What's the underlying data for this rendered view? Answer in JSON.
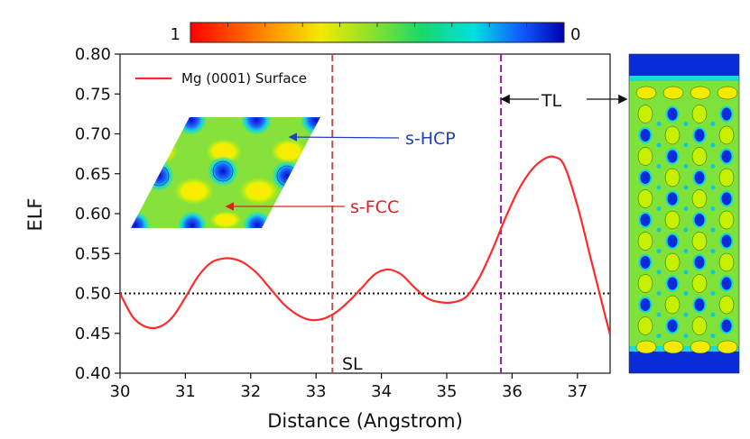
{
  "chart_data": {
    "type": "line",
    "xlabel": "Distance (Angstrom)",
    "ylabel": "ELF",
    "xlim": [
      30,
      37.5
    ],
    "ylim": [
      0.4,
      0.8
    ],
    "xticks": [
      30,
      31,
      32,
      33,
      34,
      35,
      36,
      37
    ],
    "yticks": [
      0.4,
      0.45,
      0.5,
      0.55,
      0.6,
      0.65,
      0.7,
      0.75,
      0.8
    ],
    "ytick_labels": [
      "0.40",
      "0.45",
      "0.50",
      "0.55",
      "0.60",
      "0.65",
      "0.70",
      "0.75",
      "0.80"
    ],
    "series": [
      {
        "name": "Mg (0001) Surface",
        "color": "#ff2a2a",
        "x": [
          30.0,
          30.2,
          30.4,
          30.6,
          30.8,
          31.0,
          31.2,
          31.4,
          31.6,
          31.75,
          31.9,
          32.1,
          32.3,
          32.5,
          32.7,
          32.9,
          33.1,
          33.3,
          33.5,
          33.7,
          33.9,
          34.1,
          34.3,
          34.5,
          34.7,
          34.9,
          35.1,
          35.3,
          35.5,
          35.7,
          35.9,
          36.1,
          36.3,
          36.5,
          36.65,
          36.8,
          37.0,
          37.2,
          37.4,
          37.5
        ],
        "y": [
          0.5,
          0.47,
          0.458,
          0.458,
          0.47,
          0.495,
          0.522,
          0.539,
          0.544,
          0.543,
          0.538,
          0.525,
          0.506,
          0.487,
          0.474,
          0.467,
          0.468,
          0.476,
          0.49,
          0.507,
          0.524,
          0.53,
          0.524,
          0.508,
          0.494,
          0.489,
          0.489,
          0.496,
          0.52,
          0.555,
          0.595,
          0.63,
          0.655,
          0.669,
          0.671,
          0.66,
          0.61,
          0.545,
          0.48,
          0.448
        ]
      }
    ],
    "reference_lines": [
      {
        "orientation": "horizontal",
        "value": 0.5,
        "style": "dotted",
        "color": "#111111"
      },
      {
        "orientation": "vertical",
        "value": 33.25,
        "style": "dashed",
        "color": "#c0504d",
        "label": "SL"
      },
      {
        "orientation": "vertical",
        "value": 35.83,
        "style": "dashed",
        "color": "#8b1f9c",
        "label": "TL"
      }
    ],
    "annotations": [
      {
        "text": "s-HCP",
        "color": "#1f3fbf",
        "arrow_color": "#1f3fbf"
      },
      {
        "text": "s-FCC",
        "color": "#e02020",
        "arrow_color": "#e02020"
      }
    ],
    "colorbar": {
      "left_label": "1",
      "right_label": "0",
      "colormap": "jet_reversed"
    },
    "legend_position": "top-left"
  }
}
